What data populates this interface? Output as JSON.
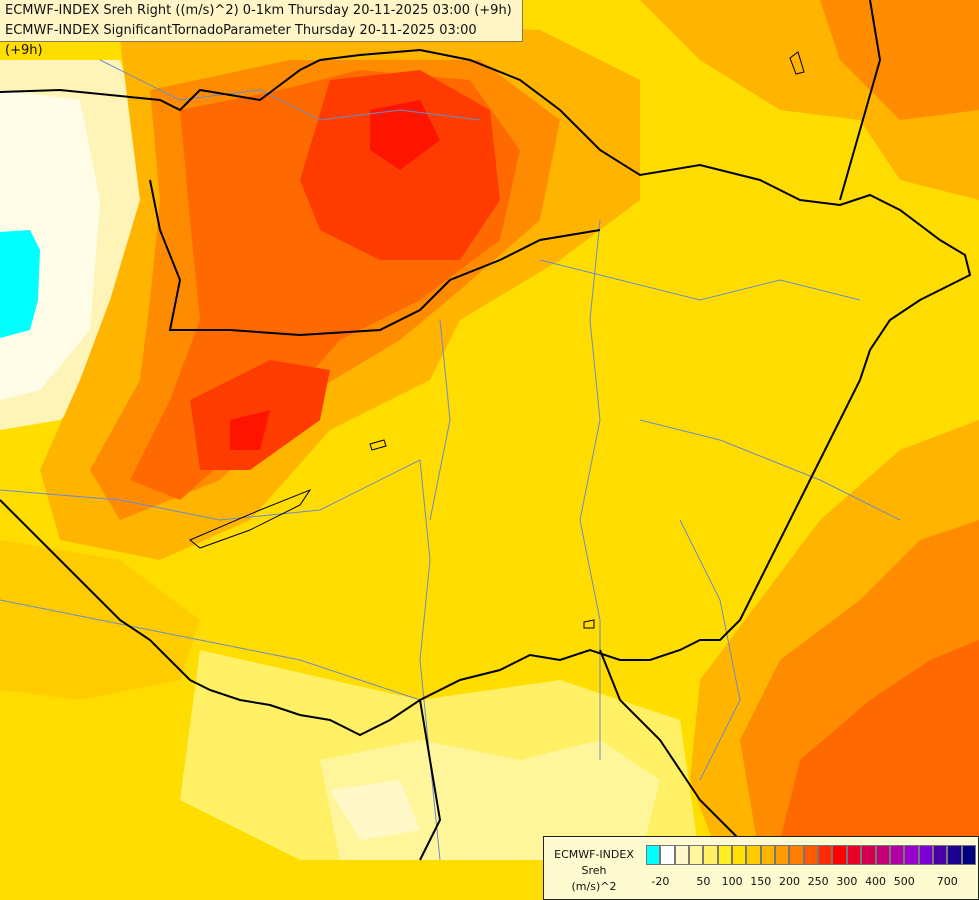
{
  "title": {
    "line1": "ECMWF-INDEX Sreh Right ((m/s)^2) 0-1km Thursday 20-11-2025 03:00 (+9h)",
    "line2": "ECMWF-INDEX SignificantTornadoParameter Thursday 20-11-2025 03:00 (+9h)"
  },
  "legend": {
    "model": "ECMWF-INDEX",
    "variable": "Sreh",
    "unit": "(m/s)^2",
    "colors": [
      "#00ffff",
      "#ffffff",
      "#fff8c8",
      "#fff59a",
      "#fff066",
      "#ffee22",
      "#ffe000",
      "#ffcc00",
      "#ffb400",
      "#ff9c00",
      "#ff7e00",
      "#ff5a00",
      "#ff2a00",
      "#ff0000",
      "#e8002a",
      "#d2004e",
      "#c40078",
      "#b000a6",
      "#9a00cc",
      "#7a00d6",
      "#4800a6",
      "#1c0090",
      "#000080"
    ],
    "ticks": [
      "-20",
      "50",
      "100",
      "150",
      "200",
      "250",
      "300",
      "400",
      "500",
      "700"
    ]
  }
}
